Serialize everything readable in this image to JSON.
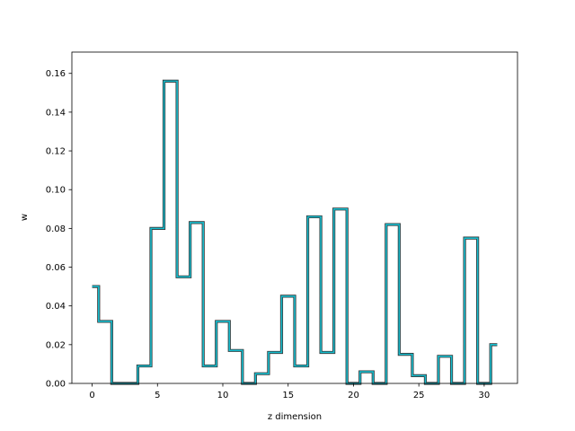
{
  "chart_data": {
    "type": "line",
    "drawstyle": "steps-mid",
    "title": "",
    "xlabel": "z dimension",
    "ylabel": "w",
    "xlim": [
      -1.55,
      32.55
    ],
    "ylim": [
      0,
      0.171
    ],
    "xticks": [
      0,
      5,
      10,
      15,
      20,
      25,
      30
    ],
    "xtick_labels": [
      "0",
      "5",
      "10",
      "15",
      "20",
      "25",
      "30"
    ],
    "yticks": [
      0.0,
      0.02,
      0.04,
      0.06,
      0.08,
      0.1,
      0.12,
      0.14,
      0.16
    ],
    "ytick_labels": [
      "0.00",
      "0.02",
      "0.04",
      "0.06",
      "0.08",
      "0.10",
      "0.12",
      "0.14",
      "0.16"
    ],
    "grid": false,
    "line_color": "#17becf",
    "edge_color": "#333333",
    "x": [
      0,
      1,
      2,
      3,
      4,
      5,
      6,
      7,
      8,
      9,
      10,
      11,
      12,
      13,
      14,
      15,
      16,
      17,
      18,
      19,
      20,
      21,
      22,
      23,
      24,
      25,
      26,
      27,
      28,
      29,
      30,
      31
    ],
    "y": [
      0.05,
      0.032,
      0.0,
      0.0,
      0.009,
      0.08,
      0.156,
      0.055,
      0.083,
      0.009,
      0.032,
      0.017,
      0.0,
      0.005,
      0.016,
      0.045,
      0.009,
      0.086,
      0.016,
      0.09,
      0.0,
      0.006,
      0.0,
      0.082,
      0.015,
      0.004,
      0.0,
      0.014,
      0.0,
      0.075,
      0.0,
      0.02
    ]
  }
}
